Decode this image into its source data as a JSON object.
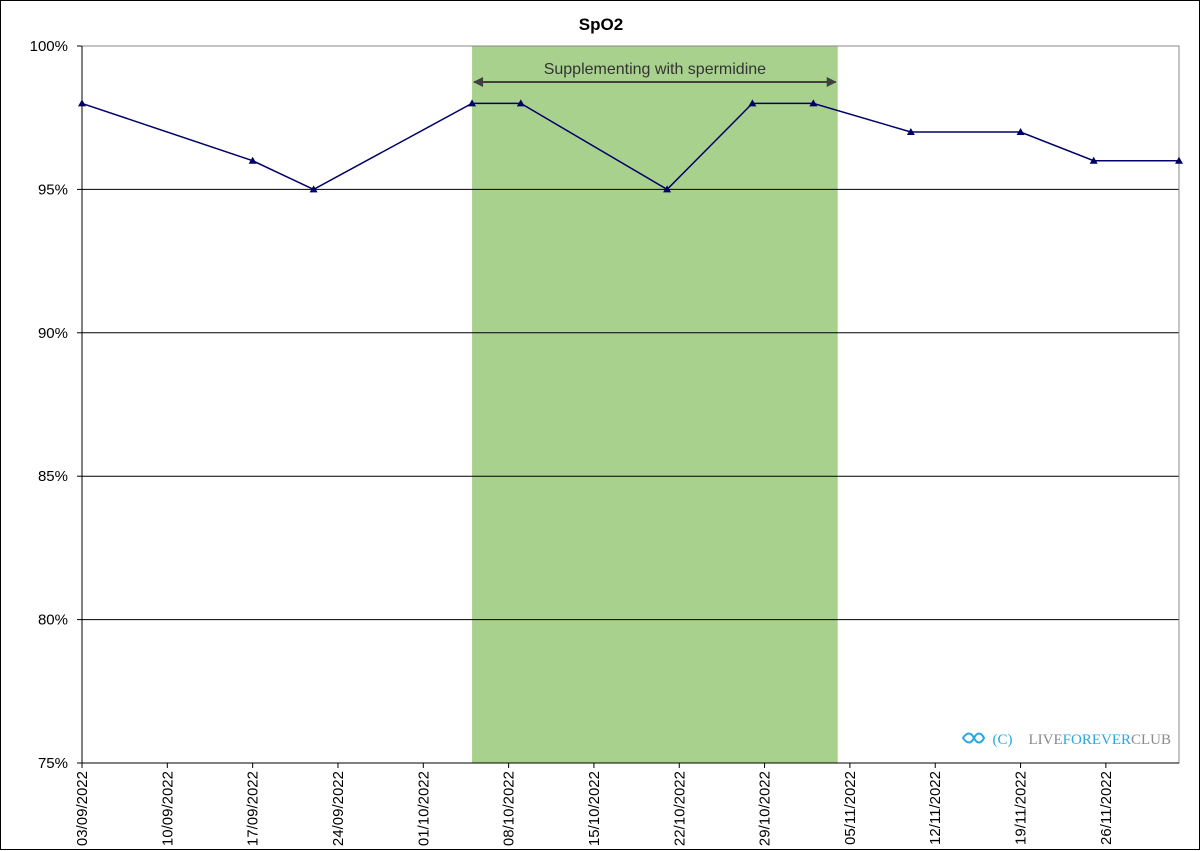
{
  "chart_data": {
    "type": "line",
    "title": "SpO2",
    "xlabel": "",
    "ylabel": "",
    "x_tick_labels": [
      "03/09/2022",
      "10/09/2022",
      "17/09/2022",
      "24/09/2022",
      "01/10/2022",
      "08/10/2022",
      "15/10/2022",
      "22/10/2022",
      "29/10/2022",
      "05/11/2022",
      "12/11/2022",
      "19/11/2022",
      "26/11/2022"
    ],
    "xlim": [
      "2022-09-03",
      "2022-12-02"
    ],
    "ylim": [
      75,
      100
    ],
    "y_ticks": [
      75,
      80,
      85,
      90,
      95,
      100
    ],
    "y_tick_suffix": "%",
    "grid": true,
    "series": [
      {
        "color": "#000066",
        "marker": "triangle",
        "x": [
          "2022-09-03",
          "2022-09-17",
          "2022-09-22",
          "2022-10-05",
          "2022-10-09",
          "2022-10-21",
          "2022-10-28",
          "2022-11-02",
          "2022-11-10",
          "2022-11-19",
          "2022-11-25",
          "2022-12-02"
        ],
        "values": [
          98,
          96,
          95,
          98,
          98,
          95,
          98,
          98,
          97,
          97,
          96,
          96
        ]
      }
    ],
    "shaded_region": {
      "start": "2022-10-05",
      "end": "2022-11-04",
      "label": "Supplementing with spermidine",
      "color": "#a9d18e"
    },
    "watermark": "(C)LIVEFOREVERCLUB"
  }
}
